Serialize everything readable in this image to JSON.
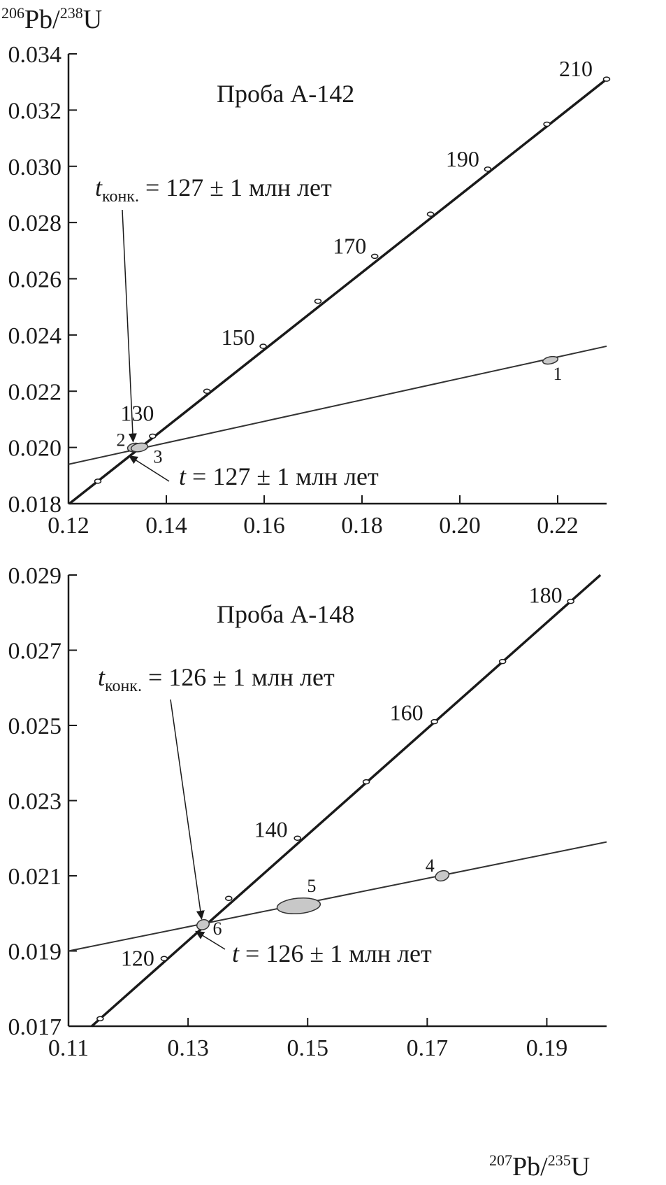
{
  "y_axis_title": {
    "sup1": "206",
    "mid": "Pb/",
    "sup2": "238",
    "end": "U"
  },
  "x_axis_title": {
    "sup1": "207",
    "mid": "Pb/",
    "sup2": "235",
    "end": "U"
  },
  "chart_data": [
    {
      "type": "scatter",
      "title": "Проба А-142",
      "xlim": [
        0.12,
        0.23
      ],
      "ylim": [
        0.018,
        0.034
      ],
      "x_ticks": [
        0.12,
        0.14,
        0.16,
        0.18,
        0.2,
        0.22
      ],
      "x_tick_labels": [
        "0.12",
        "0.14",
        "0.16",
        "0.18",
        "0.20",
        "0.22"
      ],
      "y_ticks": [
        0.018,
        0.02,
        0.022,
        0.024,
        0.026,
        0.028,
        0.03,
        0.032,
        0.034
      ],
      "y_tick_labels": [
        "0.018",
        "0.020",
        "0.022",
        "0.024",
        "0.026",
        "0.028",
        "0.030",
        "0.032",
        "0.034"
      ],
      "concordia": {
        "markers": [
          {
            "x": 0.126,
            "y": 0.0188
          },
          {
            "x": 0.1372,
            "y": 0.0204
          },
          {
            "x": 0.1483,
            "y": 0.022
          },
          {
            "x": 0.1598,
            "y": 0.0236
          },
          {
            "x": 0.171,
            "y": 0.0252
          },
          {
            "x": 0.1826,
            "y": 0.0268
          },
          {
            "x": 0.194,
            "y": 0.0283
          },
          {
            "x": 0.2057,
            "y": 0.0299
          },
          {
            "x": 0.2178,
            "y": 0.0315
          },
          {
            "x": 0.23,
            "y": 0.0331
          }
        ],
        "age_labels": [
          {
            "age": "130",
            "x": 0.1372,
            "y": 0.0204
          },
          {
            "age": "150",
            "x": 0.1598,
            "y": 0.0236
          },
          {
            "age": "170",
            "x": 0.1826,
            "y": 0.0268
          },
          {
            "age": "190",
            "x": 0.2057,
            "y": 0.0299
          },
          {
            "age": "210",
            "x": 0.23,
            "y": 0.0331
          }
        ]
      },
      "discordia": {
        "x1": 0.12,
        "y1": 0.0194,
        "x2": 0.23,
        "y2": 0.0236
      },
      "points": [
        {
          "label": "1",
          "x": 0.2185,
          "y": 0.0231
        },
        {
          "label": "2",
          "x": 0.1335,
          "y": 0.02
        },
        {
          "label": "3",
          "x": 0.1345,
          "y": 0.02
        }
      ],
      "annotations": {
        "conc_italic": "t",
        "conc_sub": "конк.",
        "conc_text": " = 127 ± 1 млн лет",
        "t_italic": "t",
        "t_text": " = 127 ± 1 млн лет"
      },
      "intersection": {
        "x": 0.1318,
        "y": 0.0198
      },
      "conc_point": {
        "x": 0.1335,
        "y": 0.02
      }
    },
    {
      "type": "scatter",
      "title": "Проба А-148",
      "xlim": [
        0.11,
        0.2
      ],
      "ylim": [
        0.017,
        0.029
      ],
      "x_ticks": [
        0.11,
        0.13,
        0.15,
        0.17,
        0.19
      ],
      "x_tick_labels": [
        "0.11",
        "0.13",
        "0.15",
        "0.17",
        "0.19"
      ],
      "y_ticks": [
        0.017,
        0.019,
        0.021,
        0.023,
        0.025,
        0.027,
        0.029
      ],
      "y_tick_labels": [
        "0.017",
        "0.019",
        "0.021",
        "0.023",
        "0.025",
        "0.027",
        "0.029"
      ],
      "concordia": {
        "markers": [
          {
            "x": 0.1153,
            "y": 0.0172
          },
          {
            "x": 0.126,
            "y": 0.0188
          },
          {
            "x": 0.1368,
            "y": 0.0204
          },
          {
            "x": 0.1483,
            "y": 0.022
          },
          {
            "x": 0.1598,
            "y": 0.0235
          },
          {
            "x": 0.1712,
            "y": 0.0251
          },
          {
            "x": 0.1826,
            "y": 0.0267
          },
          {
            "x": 0.194,
            "y": 0.0283
          }
        ],
        "age_labels": [
          {
            "age": "120",
            "x": 0.126,
            "y": 0.0188
          },
          {
            "age": "140",
            "x": 0.1483,
            "y": 0.022
          },
          {
            "age": "160",
            "x": 0.1712,
            "y": 0.0251
          },
          {
            "age": "180",
            "x": 0.194,
            "y": 0.0283
          }
        ]
      },
      "discordia": {
        "x1": 0.11,
        "y1": 0.019,
        "x2": 0.2,
        "y2": 0.0219
      },
      "points": [
        {
          "label": "4",
          "x": 0.1725,
          "y": 0.021
        },
        {
          "label": "5",
          "x": 0.1485,
          "y": 0.0202
        },
        {
          "label": "6",
          "x": 0.1325,
          "y": 0.0197
        }
      ],
      "annotations": {
        "conc_italic": "t",
        "conc_sub": "конк.",
        "conc_text": " = 126 ± 1 млн лет",
        "t_italic": "t",
        "t_text": " = 126 ± 1 млн лет"
      },
      "intersection": {
        "x": 0.1308,
        "y": 0.0196
      },
      "conc_point": {
        "x": 0.1325,
        "y": 0.0197
      }
    }
  ]
}
